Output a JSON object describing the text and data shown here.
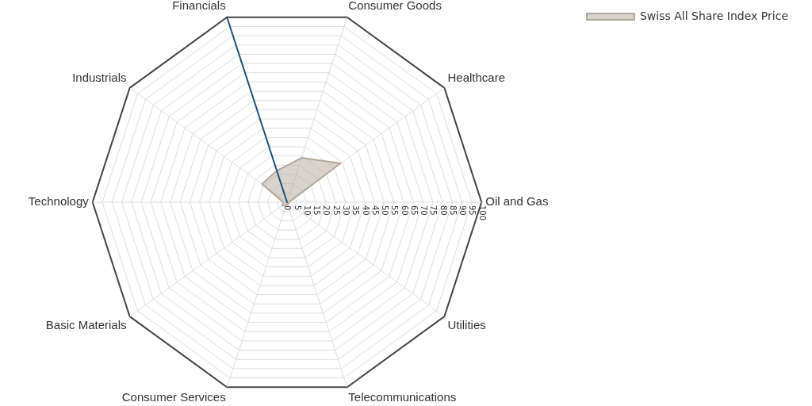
{
  "chart_data": {
    "type": "radar",
    "categories": [
      "Financials",
      "Consumer Goods",
      "Healthcare",
      "Oil and Gas",
      "Utilities",
      "Telecommunications",
      "Consumer Services",
      "Basic Materials",
      "Technology",
      "Industrials"
    ],
    "series": [
      {
        "color": "#1f4e79",
        "values": [
          100,
          0,
          0,
          0,
          0,
          0,
          0,
          0,
          0,
          0
        ]
      },
      {
        "name": "Swiss All Share Index Price",
        "color": "#b3a89c",
        "values": [
          17,
          24,
          34,
          1,
          1,
          1,
          2,
          3,
          2,
          16
        ]
      }
    ],
    "ylim": [
      0,
      100
    ],
    "yticks": [
      0,
      5,
      10,
      15,
      20,
      25,
      30,
      35,
      40,
      45,
      50,
      55,
      60,
      65,
      70,
      75,
      80,
      85,
      90,
      95,
      100
    ],
    "grid": true,
    "legend": "top right",
    "marker": "none"
  }
}
